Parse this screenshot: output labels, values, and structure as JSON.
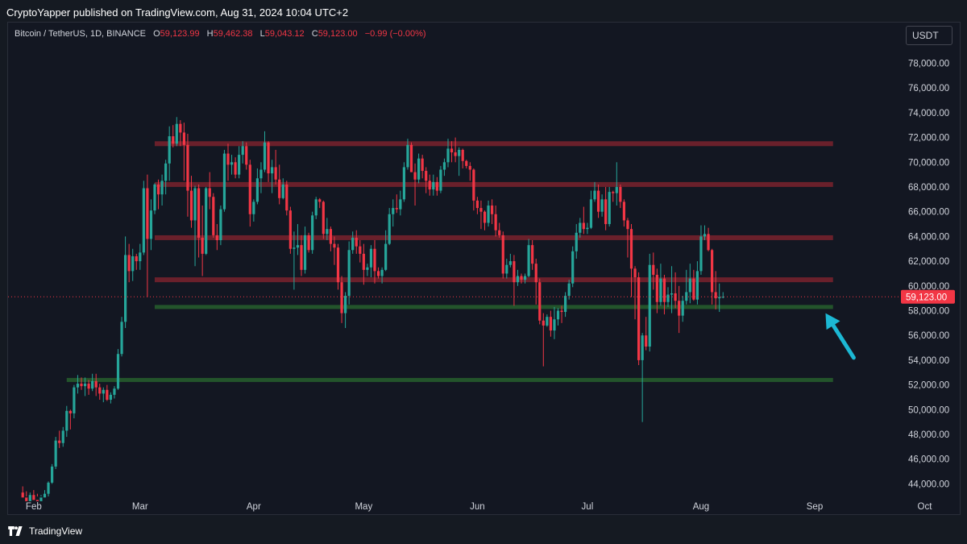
{
  "header": {
    "published_line": "CryptoYapper published on TradingView.com, Aug 31, 2024 10:04 UTC+2"
  },
  "legend": {
    "symbol": "Bitcoin / TetherUS, 1D, BINANCE",
    "o_label": "O",
    "o_value": "59,123.99",
    "h_label": "H",
    "h_value": "59,462.38",
    "l_label": "L",
    "l_value": "59,043.12",
    "c_label": "C",
    "c_value": "59,123.00",
    "change": "−0.99 (−0.00%)"
  },
  "price_axis": {
    "currency": "USDT",
    "current_price_label": "59,123.00",
    "current_price": 59123,
    "ticks": [
      "78,000.00",
      "76,000.00",
      "74,000.00",
      "72,000.00",
      "70,000.00",
      "68,000.00",
      "66,000.00",
      "64,000.00",
      "62,000.00",
      "60,000.00",
      "58,000.00",
      "56,000.00",
      "54,000.00",
      "52,000.00",
      "50,000.00",
      "48,000.00",
      "46,000.00",
      "44,000.00"
    ]
  },
  "time_axis": {
    "ticks": [
      "Feb",
      "Mar",
      "Apr",
      "May",
      "Jun",
      "Jul",
      "Aug",
      "Sep",
      "Oct"
    ]
  },
  "footer": {
    "brand": "TradingView"
  },
  "colors": {
    "bull": "#26a69a",
    "bear": "#f23645",
    "resistance": "#b22833",
    "support": "#2e7d32",
    "arrow": "#1cb8d4",
    "background": "#131722"
  },
  "chart_data": {
    "type": "candlestick",
    "symbol": "Bitcoin / TetherUS",
    "interval": "1D",
    "exchange": "BINANCE",
    "y_range": [
      43000,
      79000
    ],
    "x_range": [
      "2024-01-25",
      "2024-10-04"
    ],
    "resistance_levels": [
      {
        "price": 71500,
        "from": "2024-03-05",
        "to": "2024-09-06"
      },
      {
        "price": 68200,
        "from": "2024-03-05",
        "to": "2024-09-06"
      },
      {
        "price": 63900,
        "from": "2024-03-05",
        "to": "2024-09-06"
      },
      {
        "price": 60500,
        "from": "2024-03-05",
        "to": "2024-09-06"
      }
    ],
    "support_levels": [
      {
        "price": 58300,
        "from": "2024-03-05",
        "to": "2024-09-06"
      },
      {
        "price": 52400,
        "from": "2024-02-10",
        "to": "2024-09-06"
      }
    ],
    "arrow_annotation": {
      "from_date": "2024-09-09",
      "from_price": 54200,
      "to_date": "2024-08-31",
      "to_price": 57800
    },
    "candles_note": "O,H,L,C per day; dates consecutive from start_date",
    "start_date": "2024-01-29",
    "candles": [
      [
        43300,
        43800,
        42700,
        42900
      ],
      [
        42900,
        43400,
        42200,
        42600
      ],
      [
        42600,
        43300,
        42200,
        43100
      ],
      [
        43100,
        43500,
        42400,
        42700
      ],
      [
        42700,
        43200,
        42300,
        42600
      ],
      [
        42600,
        43100,
        42300,
        42900
      ],
      [
        42900,
        43500,
        42600,
        43200
      ],
      [
        43200,
        44200,
        42900,
        44100
      ],
      [
        44100,
        45600,
        44000,
        45400
      ],
      [
        45400,
        47800,
        45200,
        47500
      ],
      [
        47500,
        48300,
        46900,
        47300
      ],
      [
        47300,
        48600,
        47000,
        48300
      ],
      [
        48300,
        50300,
        47800,
        49900
      ],
      [
        49900,
        50000,
        48400,
        49700
      ],
      [
        49700,
        52000,
        49300,
        51800
      ],
      [
        51800,
        52800,
        51300,
        52100
      ],
      [
        52100,
        52600,
        51600,
        51900
      ],
      [
        51900,
        52600,
        51100,
        52100
      ],
      [
        52100,
        52400,
        51200,
        51700
      ],
      [
        51700,
        52900,
        51500,
        52300
      ],
      [
        52300,
        52900,
        51100,
        51800
      ],
      [
        51800,
        52100,
        50800,
        51300
      ],
      [
        51300,
        51800,
        50600,
        51600
      ],
      [
        51600,
        52000,
        50700,
        50800
      ],
      [
        50800,
        51400,
        50500,
        51200
      ],
      [
        51200,
        51900,
        50900,
        51700
      ],
      [
        51700,
        54900,
        51600,
        54500
      ],
      [
        54500,
        57500,
        54300,
        57100
      ],
      [
        57100,
        64000,
        56600,
        62500
      ],
      [
        62500,
        63400,
        60300,
        61200
      ],
      [
        61200,
        63000,
        60400,
        62400
      ],
      [
        62400,
        62600,
        61300,
        62000
      ],
      [
        62000,
        63400,
        61300,
        62700
      ],
      [
        62700,
        68500,
        62500,
        67900
      ],
      [
        67900,
        69000,
        59100,
        63800
      ],
      [
        63800,
        67000,
        62900,
        66100
      ],
      [
        66100,
        68300,
        65800,
        68200
      ],
      [
        68200,
        68600,
        66200,
        67400
      ],
      [
        67400,
        69000,
        66500,
        68500
      ],
      [
        68500,
        70200,
        67400,
        69900
      ],
      [
        69900,
        72900,
        68500,
        72100
      ],
      [
        72100,
        73000,
        71200,
        71500
      ],
      [
        71500,
        73650,
        71300,
        73100
      ],
      [
        73100,
        73400,
        71300,
        72400
      ],
      [
        72400,
        73200,
        68500,
        71400
      ],
      [
        71400,
        72300,
        65600,
        67700
      ],
      [
        67700,
        68900,
        64700,
        65300
      ],
      [
        65300,
        68100,
        61600,
        67900
      ],
      [
        67900,
        68200,
        62300,
        63900
      ],
      [
        63900,
        66500,
        60800,
        62600
      ],
      [
        62600,
        68000,
        62500,
        67900
      ],
      [
        67900,
        69200,
        66200,
        67200
      ],
      [
        67200,
        67500,
        63900,
        64100
      ],
      [
        64100,
        65000,
        62900,
        63700
      ],
      [
        63700,
        66500,
        63300,
        66200
      ],
      [
        66200,
        71000,
        66000,
        70700
      ],
      [
        70700,
        71500,
        68500,
        69800
      ],
      [
        69800,
        70600,
        69000,
        70000
      ],
      [
        70000,
        70400,
        68700,
        69000
      ],
      [
        69000,
        71300,
        68700,
        70600
      ],
      [
        70600,
        71700,
        69900,
        71300
      ],
      [
        71300,
        71600,
        69400,
        69800
      ],
      [
        69800,
        70200,
        64800,
        65800
      ],
      [
        65800,
        67000,
        65200,
        66800
      ],
      [
        66800,
        69500,
        66600,
        68700
      ],
      [
        68700,
        70000,
        67500,
        69400
      ],
      [
        69400,
        72500,
        69200,
        71600
      ],
      [
        71600,
        71700,
        68400,
        69100
      ],
      [
        69100,
        70200,
        67500,
        69600
      ],
      [
        69600,
        71000,
        68200,
        68600
      ],
      [
        68600,
        69800,
        66600,
        67100
      ],
      [
        67100,
        68700,
        67000,
        68200
      ],
      [
        68200,
        68500,
        65700,
        66100
      ],
      [
        66100,
        66400,
        62600,
        63000
      ],
      [
        63000,
        64400,
        59700,
        63100
      ],
      [
        63100,
        65000,
        62500,
        63300
      ],
      [
        63300,
        64100,
        60800,
        61300
      ],
      [
        61300,
        64800,
        61000,
        64100
      ],
      [
        64100,
        64300,
        62700,
        62900
      ],
      [
        62900,
        66000,
        62600,
        65700
      ],
      [
        65700,
        67200,
        65400,
        67000
      ],
      [
        67000,
        67100,
        66300,
        66800
      ],
      [
        66800,
        66900,
        63800,
        64200
      ],
      [
        64200,
        65500,
        63700,
        64600
      ],
      [
        64600,
        64800,
        62800,
        63400
      ],
      [
        63400,
        64000,
        61700,
        63100
      ],
      [
        63100,
        63400,
        59700,
        60300
      ],
      [
        60300,
        60800,
        57000,
        57800
      ],
      [
        57800,
        59500,
        56600,
        59200
      ],
      [
        59200,
        63600,
        58500,
        62900
      ],
      [
        62900,
        64400,
        62600,
        63900
      ],
      [
        63900,
        64500,
        62600,
        63200
      ],
      [
        63200,
        63700,
        61900,
        62600
      ],
      [
        62600,
        63400,
        60100,
        61300
      ],
      [
        61300,
        61800,
        60800,
        61500
      ],
      [
        61500,
        63300,
        60700,
        63000
      ],
      [
        63000,
        63700,
        60200,
        61200
      ],
      [
        61200,
        61500,
        60600,
        60800
      ],
      [
        60800,
        61500,
        60200,
        61300
      ],
      [
        61300,
        64500,
        61200,
        63400
      ],
      [
        63400,
        66300,
        63300,
        65800
      ],
      [
        65800,
        67000,
        64800,
        66300
      ],
      [
        66300,
        67400,
        65900,
        66200
      ],
      [
        66200,
        67700,
        65700,
        67000
      ],
      [
        67000,
        70000,
        66800,
        69600
      ],
      [
        69600,
        71900,
        69400,
        71400
      ],
      [
        71400,
        71600,
        69200,
        69200
      ],
      [
        69200,
        69900,
        66500,
        68600
      ],
      [
        68600,
        70700,
        68300,
        70300
      ],
      [
        70300,
        70600,
        68700,
        69300
      ],
      [
        69300,
        69600,
        67500,
        68500
      ],
      [
        68500,
        69000,
        67300,
        67800
      ],
      [
        67800,
        69000,
        67300,
        68400
      ],
      [
        68400,
        68800,
        67300,
        67700
      ],
      [
        67700,
        69700,
        67500,
        69400
      ],
      [
        69400,
        70300,
        68900,
        70000
      ],
      [
        70000,
        71900,
        69600,
        71100
      ],
      [
        71100,
        71700,
        70000,
        70800
      ],
      [
        70800,
        72000,
        70000,
        70500
      ],
      [
        70500,
        71200,
        68900,
        71000
      ],
      [
        71000,
        71100,
        69500,
        70100
      ],
      [
        70100,
        70200,
        69500,
        69700
      ],
      [
        69700,
        70000,
        68500,
        69400
      ],
      [
        69400,
        69500,
        66100,
        66900
      ],
      [
        66900,
        67200,
        65800,
        66300
      ],
      [
        66300,
        66900,
        64600,
        66000
      ],
      [
        66000,
        66100,
        64500,
        65100
      ],
      [
        65100,
        66900,
        64800,
        66500
      ],
      [
        66500,
        67000,
        65000,
        65800
      ],
      [
        65800,
        66500,
        64000,
        64500
      ],
      [
        64500,
        65100,
        63900,
        64100
      ],
      [
        64100,
        64400,
        60600,
        61000
      ],
      [
        61000,
        62200,
        60600,
        61700
      ],
      [
        61700,
        62600,
        61500,
        62000
      ],
      [
        62000,
        62500,
        58400,
        60300
      ],
      [
        60300,
        61300,
        60000,
        60800
      ],
      [
        60800,
        61000,
        60200,
        60500
      ],
      [
        60500,
        61000,
        60200,
        60800
      ],
      [
        60800,
        63800,
        60700,
        63300
      ],
      [
        63300,
        63700,
        61300,
        61800
      ],
      [
        61800,
        62200,
        58500,
        60300
      ],
      [
        60300,
        60600,
        56900,
        57200
      ],
      [
        57200,
        57800,
        53500,
        56800
      ],
      [
        56800,
        57700,
        56700,
        57500
      ],
      [
        57500,
        58000,
        55900,
        56400
      ],
      [
        56400,
        58300,
        55700,
        57300
      ],
      [
        57300,
        58200,
        56800,
        58000
      ],
      [
        58000,
        58400,
        57000,
        57900
      ],
      [
        57900,
        59500,
        57500,
        59200
      ],
      [
        59200,
        60500,
        58900,
        60200
      ],
      [
        60200,
        63200,
        59900,
        62800
      ],
      [
        62800,
        65000,
        62200,
        64300
      ],
      [
        64300,
        65500,
        63900,
        65100
      ],
      [
        65100,
        66400,
        64200,
        64600
      ],
      [
        64600,
        65100,
        64200,
        64700
      ],
      [
        64700,
        67700,
        64600,
        67000
      ],
      [
        67000,
        68400,
        66800,
        67700
      ],
      [
        67700,
        68200,
        65500,
        66000
      ],
      [
        66000,
        67400,
        65600,
        67000
      ],
      [
        67000,
        68000,
        64500,
        65000
      ],
      [
        65000,
        68000,
        64800,
        67600
      ],
      [
        67600,
        67700,
        66800,
        67500
      ],
      [
        67500,
        70000,
        66500,
        68000
      ],
      [
        68000,
        68200,
        66300,
        66800
      ],
      [
        66800,
        67000,
        64800,
        65300
      ],
      [
        65300,
        65500,
        62300,
        64600
      ],
      [
        64600,
        65000,
        59100,
        61400
      ],
      [
        61400,
        61600,
        57300,
        60700
      ],
      [
        60700,
        61100,
        53600,
        54000
      ],
      [
        54000,
        56200,
        49000,
        56000
      ],
      [
        56000,
        57500,
        54800,
        55100
      ],
      [
        55100,
        62600,
        54700,
        61700
      ],
      [
        61700,
        62700,
        59700,
        60900
      ],
      [
        60900,
        61400,
        57800,
        58700
      ],
      [
        58700,
        61800,
        58400,
        60600
      ],
      [
        60600,
        60900,
        57700,
        58700
      ],
      [
        58700,
        59900,
        58300,
        59300
      ],
      [
        59300,
        61600,
        57800,
        59400
      ],
      [
        59400,
        61100,
        58200,
        58800
      ],
      [
        58800,
        60000,
        56200,
        57600
      ],
      [
        57600,
        59200,
        57100,
        58800
      ],
      [
        58800,
        61300,
        58500,
        59500
      ],
      [
        59500,
        61800,
        58600,
        60600
      ],
      [
        60600,
        61300,
        58800,
        58900
      ],
      [
        58900,
        62000,
        58500,
        61200
      ],
      [
        61200,
        64900,
        60900,
        64000
      ],
      [
        64000,
        64900,
        63700,
        64200
      ],
      [
        64200,
        64700,
        62800,
        62900
      ],
      [
        62900,
        63000,
        58500,
        59500
      ],
      [
        59500,
        61200,
        58100,
        59000
      ],
      [
        59000,
        60200,
        57900,
        59100
      ],
      [
        59100,
        59500,
        59000,
        59123
      ]
    ]
  }
}
